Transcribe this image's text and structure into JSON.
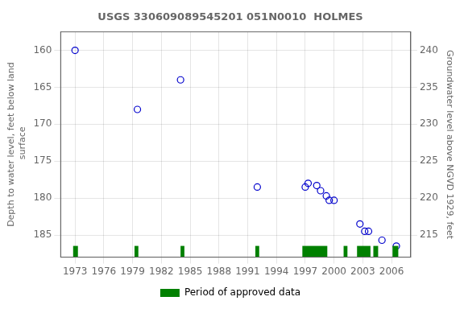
{
  "chart_data": {
    "type": "scatter",
    "title": "USGS 330609089545201 051N0010  HOLMES",
    "y_label": "Depth to water level, feet below land\n surface",
    "y2_label": "Groundwater level above NGVD 1929, feet",
    "xlim": [
      1971.5,
      2008.0
    ],
    "xticks": [
      1973,
      1976,
      1979,
      1982,
      1985,
      1988,
      1991,
      1994,
      1997,
      2000,
      2003,
      2006
    ],
    "ylim": [
      188.0,
      157.5
    ],
    "yticks": [
      160,
      165,
      170,
      175,
      180,
      185
    ],
    "y2lim": [
      212.0,
      242.5
    ],
    "y2ticks": [
      215,
      220,
      225,
      230,
      235,
      240
    ],
    "grid": true,
    "legend": "bottom",
    "series": [
      {
        "type": "scatter",
        "color": "#0000cc",
        "marker": "circle",
        "x": [
          1973.0,
          1979.5,
          1984.0,
          1992.0,
          1997.0,
          1997.3,
          1998.2,
          1998.6,
          1999.2,
          1999.5,
          2000.0,
          2002.7,
          2003.2,
          2003.6,
          2005.0,
          2006.5
        ],
        "values": [
          160.0,
          168.0,
          164.0,
          178.5,
          178.5,
          178.0,
          178.3,
          179.0,
          179.7,
          180.3,
          180.3,
          183.5,
          184.5,
          184.5,
          185.7,
          186.5
        ]
      },
      {
        "name": "Period of approved data",
        "type": "bar",
        "color": "#008000",
        "ranges": [
          [
            1972.8,
            1973.3
          ],
          [
            1979.2,
            1979.6
          ],
          [
            1984.0,
            1984.4
          ],
          [
            1991.8,
            1992.2
          ],
          [
            1996.7,
            1999.3
          ],
          [
            2001.0,
            2001.4
          ],
          [
            2002.4,
            2003.8
          ],
          [
            2004.1,
            2004.6
          ],
          [
            2006.1,
            2006.7
          ]
        ]
      }
    ]
  }
}
